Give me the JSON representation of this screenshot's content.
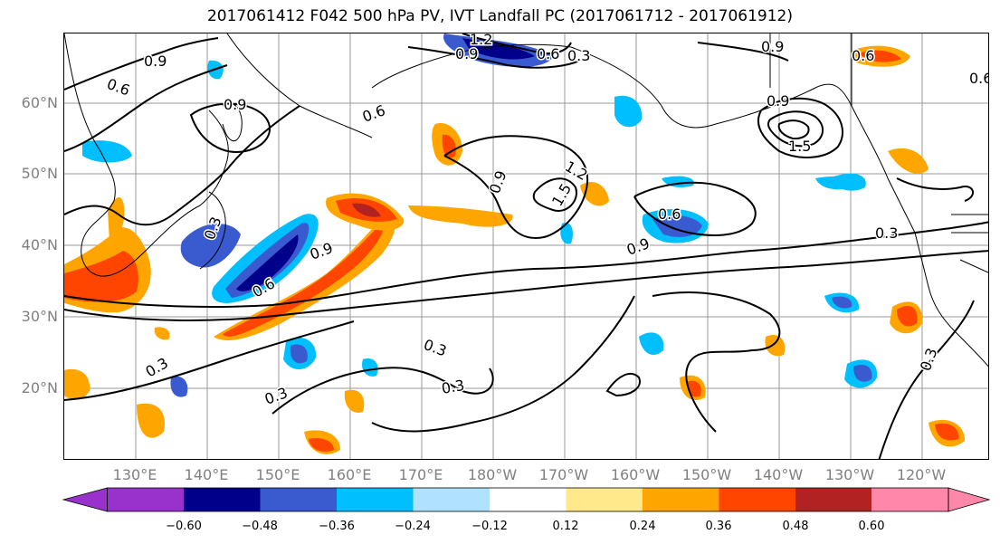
{
  "title": "2017061412 F042 500 hPa PV, IVT Landfall PC (2017061712 - 2017061912)",
  "lat_labels": [
    "60°N",
    "50°N",
    "40°N",
    "30°N",
    "20°N"
  ],
  "lon_labels": [
    "130°E",
    "140°E",
    "150°E",
    "160°E",
    "170°E",
    "180°W",
    "170°W",
    "160°W",
    "150°W",
    "140°W",
    "130°W",
    "120°W"
  ],
  "contour_labels": [
    "0.9",
    "0.6",
    "0.9",
    "0.6",
    "0.3",
    "1.2",
    "0.9",
    "0.9",
    "1.5",
    "0.6",
    "0.6",
    "0.9",
    "1.2",
    "1.5",
    "0.9",
    "0.6",
    "0.9",
    "0.3",
    "0.3",
    "0.3",
    "0.3",
    "0.3",
    "0.3",
    "0.6",
    "0.9",
    "0.3",
    "0.6"
  ],
  "colorbar": {
    "ticks": [
      "−0.60",
      "−0.48",
      "−0.36",
      "−0.24",
      "−0.12",
      "0.12",
      "0.24",
      "0.36",
      "0.48",
      "0.60"
    ],
    "colors": [
      "#9932cc",
      "#00008b",
      "#3a5bcf",
      "#00bfff",
      "#b0e2ff",
      "#ffffff",
      "#ffe98a",
      "#ffa500",
      "#ff4500",
      "#b22222",
      "#ff88aa"
    ]
  },
  "map_colors": {
    "neg_strong": "#00008b",
    "neg_mid": "#3a5bcf",
    "neg_light": "#00bfff",
    "neg_pale": "#b0e2ff",
    "pos_pale": "#ffe98a",
    "pos_light": "#ffa500",
    "pos_mid": "#ff4500",
    "pos_strong": "#b22222",
    "contour": "#000000",
    "grid": "#999999"
  }
}
